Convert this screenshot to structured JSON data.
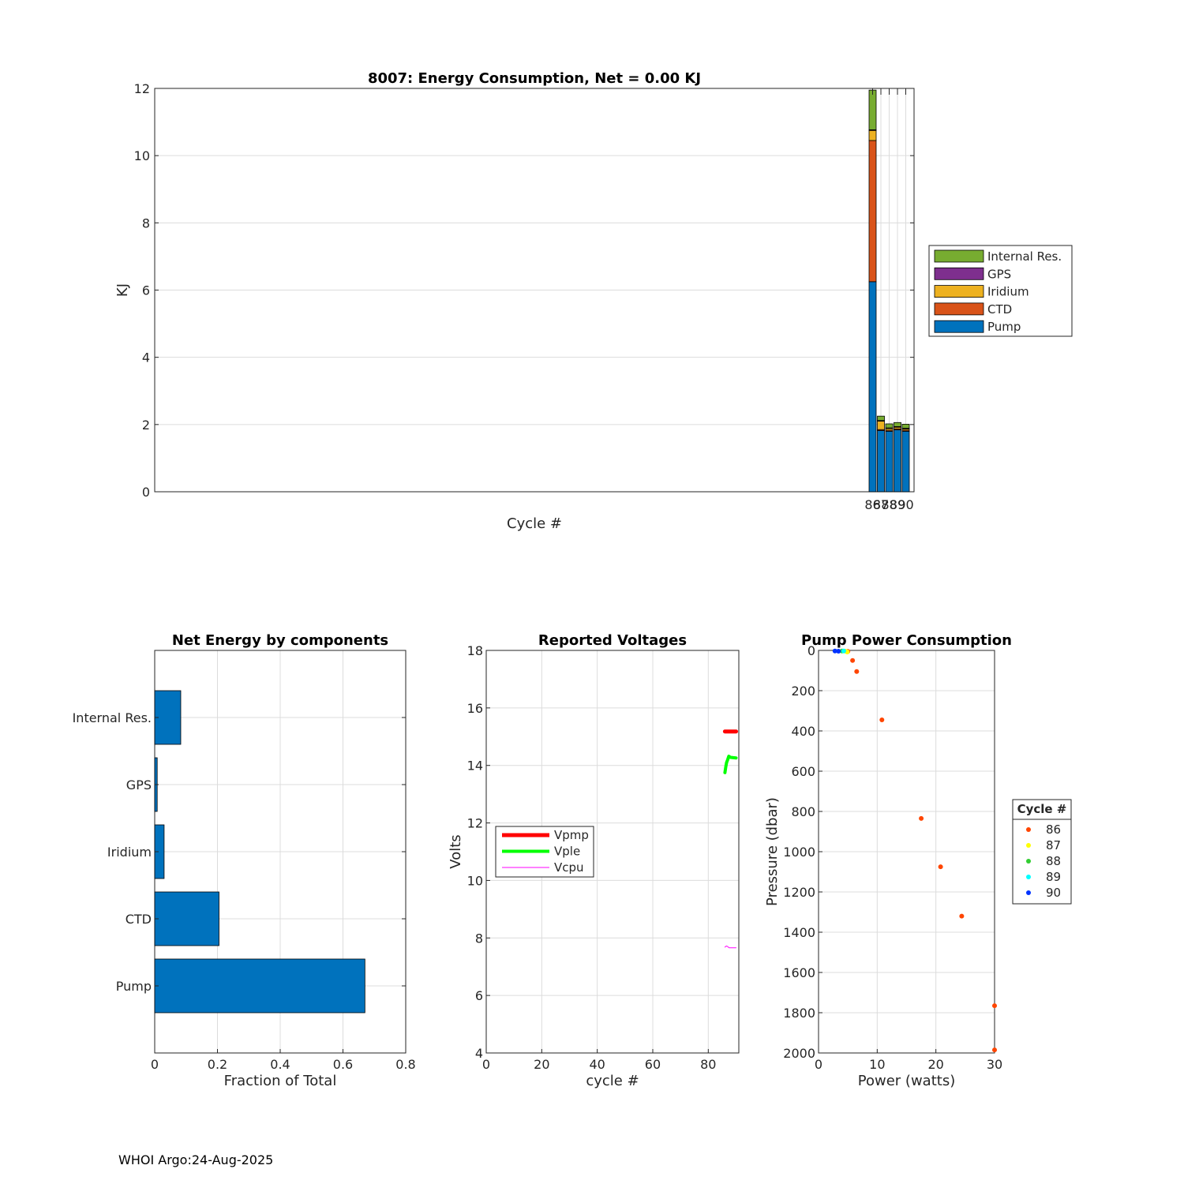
{
  "footer": "WHOI Argo:24-Aug-2025",
  "chart_data": [
    {
      "id": "energy",
      "type": "bar",
      "stacked": true,
      "title": "8007: Energy Consumption,  Net =   0.00 KJ",
      "xlabel": "Cycle #",
      "ylabel": "KJ",
      "ylim": [
        0,
        12
      ],
      "yticks": [
        0,
        2,
        4,
        6,
        8,
        10,
        12
      ],
      "grid": true,
      "legend_position": "right",
      "categories": [
        "86",
        "87",
        "88",
        "89",
        "90"
      ],
      "series": [
        {
          "name": "Pump",
          "color": "#0072bd",
          "values": [
            6.25,
            1.82,
            1.8,
            1.84,
            1.8
          ]
        },
        {
          "name": "CTD",
          "color": "#d95319",
          "values": [
            4.2,
            0.03,
            0.03,
            0.03,
            0.03
          ]
        },
        {
          "name": "Iridium",
          "color": "#edb120",
          "values": [
            0.3,
            0.25,
            0.05,
            0.05,
            0.04
          ]
        },
        {
          "name": "GPS",
          "color": "#7e2f8e",
          "values": [
            0.02,
            0.02,
            0.02,
            0.02,
            0.02
          ]
        },
        {
          "name": "Internal Res.",
          "color": "#77ac30",
          "values": [
            1.18,
            0.13,
            0.12,
            0.12,
            0.12
          ]
        }
      ]
    },
    {
      "id": "components",
      "type": "bar",
      "orientation": "horizontal",
      "title": "Net Energy by components",
      "xlabel": "Fraction of Total",
      "ylabel": "",
      "xlim": [
        0,
        0.8
      ],
      "xticks": [
        "0",
        "0.2",
        "0.4",
        "0.6",
        "0.8"
      ],
      "grid": true,
      "color": "#0072bd",
      "categories": [
        "Pump",
        "CTD",
        "Iridium",
        "GPS",
        "Internal Res."
      ],
      "values": [
        0.67,
        0.205,
        0.03,
        0.008,
        0.083
      ]
    },
    {
      "id": "voltages",
      "type": "line",
      "title": "Reported Voltages",
      "xlabel": "cycle #",
      "ylabel": "Volts",
      "xlim": [
        0,
        91
      ],
      "ylim": [
        4,
        18
      ],
      "xticks": [
        0,
        20,
        40,
        60,
        80
      ],
      "yticks": [
        4,
        6,
        8,
        10,
        12,
        14,
        16,
        18
      ],
      "grid": true,
      "legend_position": "middle-left",
      "series": [
        {
          "name": "Vpmp",
          "color": "#ff0000",
          "x": [
            86,
            87,
            88,
            89,
            90
          ],
          "y": [
            15.18,
            15.18,
            15.18,
            15.18,
            15.18
          ]
        },
        {
          "name": "Vple",
          "color": "#00ff00",
          "x": [
            86,
            86.3,
            86.6,
            87,
            87.4,
            88,
            89,
            90
          ],
          "y": [
            13.75,
            13.95,
            14.1,
            14.2,
            14.32,
            14.28,
            14.27,
            14.26
          ]
        },
        {
          "name": "Vcpu",
          "color": "#ff00ff",
          "x": [
            86,
            86.5,
            87,
            87.5,
            88,
            89,
            90
          ],
          "y": [
            7.68,
            7.72,
            7.7,
            7.66,
            7.66,
            7.66,
            7.66
          ]
        }
      ]
    },
    {
      "id": "pump",
      "type": "scatter",
      "title": "Pump Power Consumption",
      "xlabel": "Power (watts)",
      "ylabel": "Pressure (dbar)",
      "xlim": [
        0,
        30
      ],
      "ylim": [
        0,
        2000
      ],
      "y_reversed": true,
      "xticks": [
        0,
        10,
        20,
        30
      ],
      "yticks": [
        0,
        200,
        400,
        600,
        800,
        1000,
        1200,
        1400,
        1600,
        1800,
        2000
      ],
      "grid": true,
      "legend_title": "Cycle #",
      "legend_position": "right",
      "series": [
        {
          "name": "86",
          "color": "#ff4500",
          "x": [
            5.0,
            5.8,
            6.5,
            10.8,
            17.5,
            20.8,
            24.4,
            30.0,
            30.0
          ],
          "y": [
            5,
            50,
            105,
            345,
            835,
            1075,
            1320,
            1765,
            1985
          ]
        },
        {
          "name": "87",
          "color": "#ffff00",
          "x": [
            4.6,
            4.9
          ],
          "y": [
            4,
            8
          ]
        },
        {
          "name": "88",
          "color": "#32cd32",
          "x": [
            4.0
          ],
          "y": [
            3
          ]
        },
        {
          "name": "89",
          "color": "#00ffff",
          "x": [
            4.3
          ],
          "y": [
            3
          ]
        },
        {
          "name": "90",
          "color": "#0033ff",
          "x": [
            2.8,
            3.4
          ],
          "y": [
            3,
            4
          ]
        }
      ]
    }
  ]
}
